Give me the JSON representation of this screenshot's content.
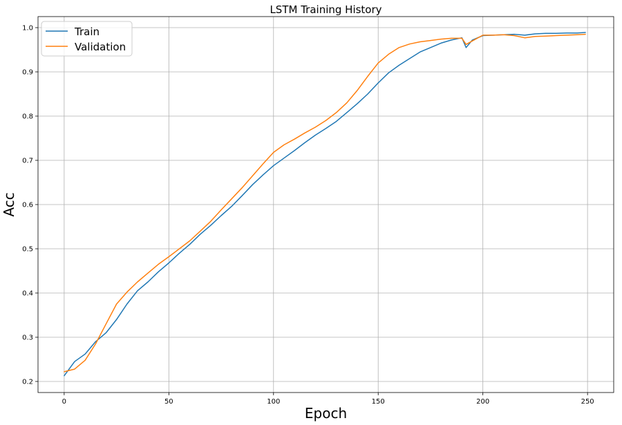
{
  "chart_data": {
    "type": "line",
    "title": "LSTM Training History",
    "xlabel": "Epoch",
    "ylabel": "Acc",
    "xlim": [
      -12.5,
      262.5
    ],
    "ylim": [
      0.175,
      1.025
    ],
    "xticks": [
      0,
      50,
      100,
      150,
      200,
      250
    ],
    "yticks": [
      0.2,
      0.3,
      0.4,
      0.5,
      0.6,
      0.7,
      0.8,
      0.9,
      1.0
    ],
    "xtick_labels": [
      "0",
      "50",
      "100",
      "150",
      "200",
      "250"
    ],
    "ytick_labels": [
      "0.2",
      "0.3",
      "0.4",
      "0.5",
      "0.6",
      "0.7",
      "0.8",
      "0.9",
      "1.0"
    ],
    "grid": true,
    "legend_position": "top-left",
    "x": [
      0,
      5,
      10,
      15,
      20,
      25,
      30,
      35,
      40,
      45,
      50,
      55,
      60,
      65,
      70,
      75,
      80,
      85,
      90,
      95,
      100,
      105,
      110,
      115,
      120,
      125,
      130,
      135,
      140,
      145,
      150,
      155,
      160,
      165,
      170,
      175,
      180,
      185,
      190,
      192,
      195,
      200,
      205,
      210,
      215,
      220,
      225,
      230,
      235,
      240,
      245,
      249
    ],
    "series": [
      {
        "name": "Train",
        "color": "#1f77b4",
        "values": [
          0.213,
          0.245,
          0.262,
          0.29,
          0.31,
          0.34,
          0.375,
          0.405,
          0.425,
          0.448,
          0.468,
          0.49,
          0.51,
          0.533,
          0.553,
          0.575,
          0.596,
          0.62,
          0.645,
          0.667,
          0.688,
          0.705,
          0.722,
          0.74,
          0.757,
          0.772,
          0.788,
          0.808,
          0.828,
          0.85,
          0.875,
          0.898,
          0.915,
          0.93,
          0.945,
          0.955,
          0.965,
          0.972,
          0.977,
          0.955,
          0.972,
          0.982,
          0.983,
          0.984,
          0.985,
          0.983,
          0.986,
          0.987,
          0.987,
          0.988,
          0.988,
          0.989
        ]
      },
      {
        "name": "Validation",
        "color": "#ff7f0e",
        "values": [
          0.222,
          0.228,
          0.248,
          0.285,
          0.33,
          0.375,
          0.402,
          0.425,
          0.445,
          0.465,
          0.482,
          0.5,
          0.518,
          0.54,
          0.562,
          0.588,
          0.613,
          0.638,
          0.665,
          0.692,
          0.718,
          0.735,
          0.748,
          0.762,
          0.775,
          0.79,
          0.808,
          0.83,
          0.858,
          0.89,
          0.92,
          0.94,
          0.955,
          0.963,
          0.968,
          0.971,
          0.974,
          0.976,
          0.976,
          0.962,
          0.97,
          0.983,
          0.983,
          0.984,
          0.982,
          0.977,
          0.98,
          0.981,
          0.982,
          0.983,
          0.984,
          0.985
        ]
      }
    ]
  }
}
